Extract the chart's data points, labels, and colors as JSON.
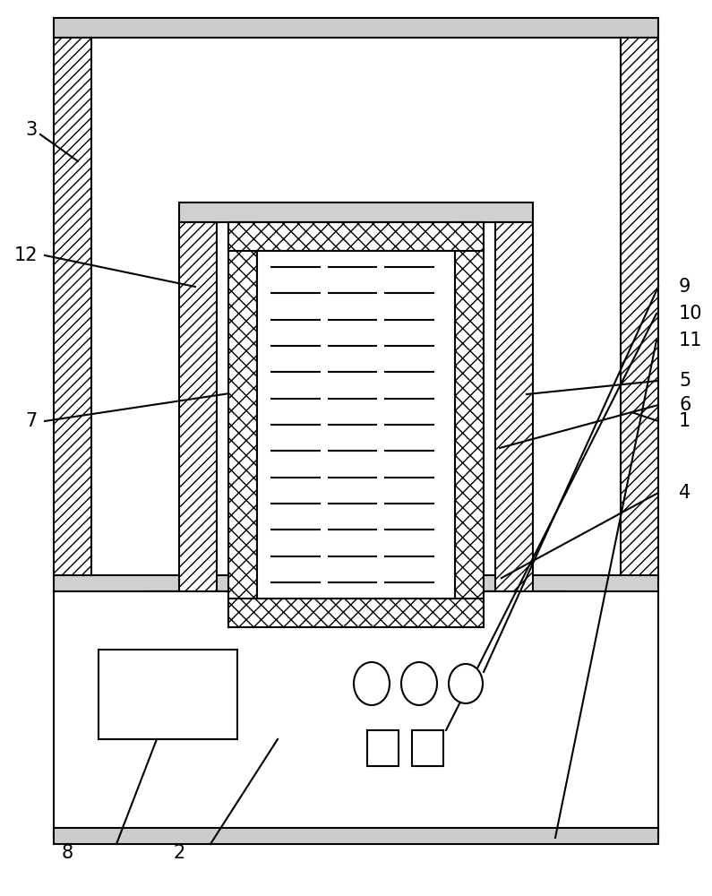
{
  "bg_color": "#ffffff",
  "line_color": "#000000",
  "fig_width": 7.95,
  "fig_height": 10.0,
  "outer_col_hatch": "///",
  "inner_col_hatch": "///",
  "cross_hatch": "xx",
  "lw": 1.5
}
